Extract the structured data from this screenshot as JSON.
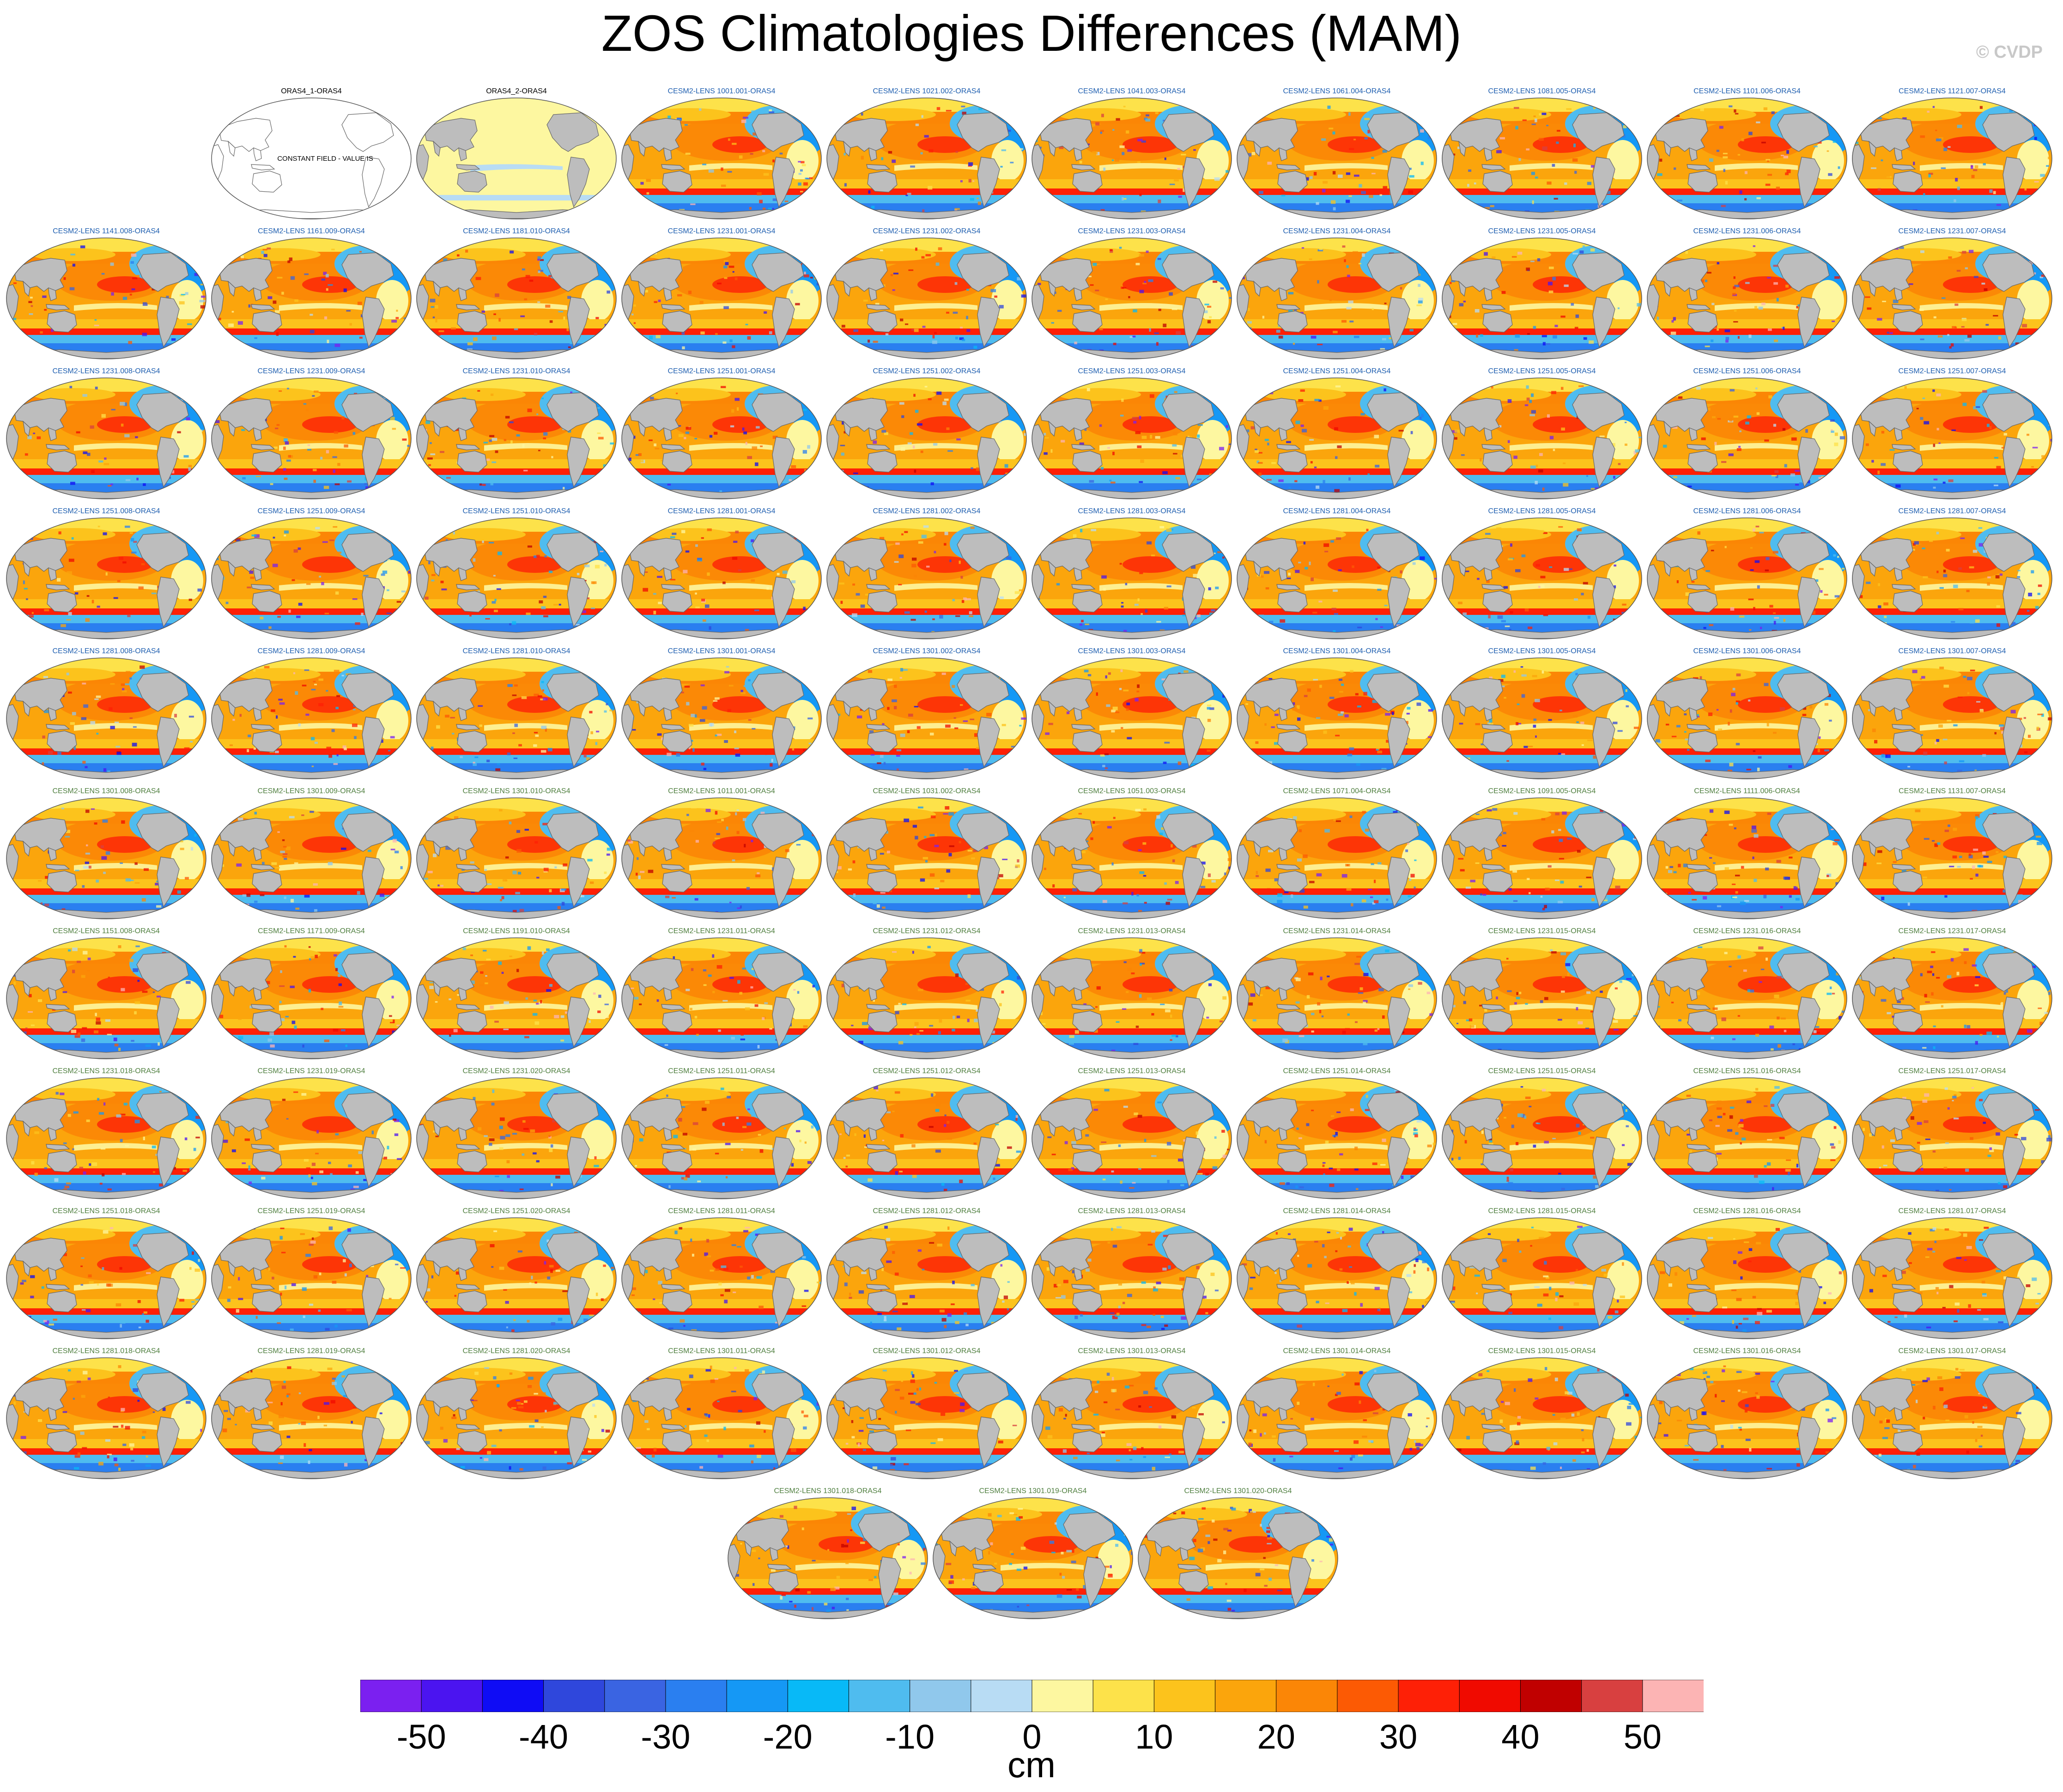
{
  "title": "ZOS Climatologies Differences (MAM)",
  "copyright": "© CVDP",
  "colors": {
    "land": "#bdbdbd",
    "coast": "#666666",
    "label_blue": "#1f5fb0",
    "label_green": "#4f7f3f",
    "label_black": "#000000"
  },
  "colorbar": {
    "unit": "cm",
    "colors": [
      "#7b20f0",
      "#4b14f0",
      "#0f0cf5",
      "#2f47dc",
      "#3a64e2",
      "#2a7ff0",
      "#1598f5",
      "#08b9f7",
      "#4fbcef",
      "#90c8ec",
      "#b8dcf4",
      "#fdf7a0",
      "#fde24a",
      "#fcc31c",
      "#fba50c",
      "#fb8606",
      "#fc5a04",
      "#fe2006",
      "#f00a00",
      "#c00000",
      "#d84040",
      "#fcb4b4"
    ],
    "ticks": [
      -50,
      -40,
      -30,
      -20,
      -10,
      0,
      10,
      20,
      30,
      40,
      50
    ],
    "tick_labels": [
      "-50",
      "-40",
      "-30",
      "-20",
      "-10",
      "0",
      "10",
      "20",
      "30",
      "40",
      "50"
    ],
    "range": [
      -55,
      55
    ]
  },
  "panels": [
    {
      "label": "ORAS4_1-ORAS4",
      "style": "blank",
      "note": "CONSTANT FIELD - VALUE IS"
    },
    {
      "label": "ORAS4_2-ORAS4",
      "style": "pale"
    },
    {
      "label": "CESM2-LENS 1001.001-ORAS4",
      "style": "diff"
    },
    {
      "label": "CESM2-LENS 1021.002-ORAS4",
      "style": "diff"
    },
    {
      "label": "CESM2-LENS 1041.003-ORAS4",
      "style": "diff"
    },
    {
      "label": "CESM2-LENS 1061.004-ORAS4",
      "style": "diff"
    },
    {
      "label": "CESM2-LENS 1081.005-ORAS4",
      "style": "diff"
    },
    {
      "label": "CESM2-LENS 1101.006-ORAS4",
      "style": "diff"
    },
    {
      "label": "CESM2-LENS 1121.007-ORAS4",
      "style": "diff"
    },
    {
      "label": "CESM2-LENS 1141.008-ORAS4",
      "style": "diff"
    },
    {
      "label": "CESM2-LENS 1161.009-ORAS4",
      "style": "diff"
    },
    {
      "label": "CESM2-LENS 1181.010-ORAS4",
      "style": "diff"
    },
    {
      "label": "CESM2-LENS 1231.001-ORAS4",
      "style": "diff"
    },
    {
      "label": "CESM2-LENS 1231.002-ORAS4",
      "style": "diff"
    },
    {
      "label": "CESM2-LENS 1231.003-ORAS4",
      "style": "diff"
    },
    {
      "label": "CESM2-LENS 1231.004-ORAS4",
      "style": "diff"
    },
    {
      "label": "CESM2-LENS 1231.005-ORAS4",
      "style": "diff"
    },
    {
      "label": "CESM2-LENS 1231.006-ORAS4",
      "style": "diff"
    },
    {
      "label": "CESM2-LENS 1231.007-ORAS4",
      "style": "diff"
    },
    {
      "label": "CESM2-LENS 1231.008-ORAS4",
      "style": "diff"
    },
    {
      "label": "CESM2-LENS 1231.009-ORAS4",
      "style": "diff"
    },
    {
      "label": "CESM2-LENS 1231.010-ORAS4",
      "style": "diff"
    },
    {
      "label": "CESM2-LENS 1251.001-ORAS4",
      "style": "diff"
    },
    {
      "label": "CESM2-LENS 1251.002-ORAS4",
      "style": "diff"
    },
    {
      "label": "CESM2-LENS 1251.003-ORAS4",
      "style": "diff"
    },
    {
      "label": "CESM2-LENS 1251.004-ORAS4",
      "style": "diff"
    },
    {
      "label": "CESM2-LENS 1251.005-ORAS4",
      "style": "diff"
    },
    {
      "label": "CESM2-LENS 1251.006-ORAS4",
      "style": "diff"
    },
    {
      "label": "CESM2-LENS 1251.007-ORAS4",
      "style": "diff"
    },
    {
      "label": "CESM2-LENS 1251.008-ORAS4",
      "style": "diff"
    },
    {
      "label": "CESM2-LENS 1251.009-ORAS4",
      "style": "diff"
    },
    {
      "label": "CESM2-LENS 1251.010-ORAS4",
      "style": "diff"
    },
    {
      "label": "CESM2-LENS 1281.001-ORAS4",
      "style": "diff"
    },
    {
      "label": "CESM2-LENS 1281.002-ORAS4",
      "style": "diff"
    },
    {
      "label": "CESM2-LENS 1281.003-ORAS4",
      "style": "diff"
    },
    {
      "label": "CESM2-LENS 1281.004-ORAS4",
      "style": "diff"
    },
    {
      "label": "CESM2-LENS 1281.005-ORAS4",
      "style": "diff"
    },
    {
      "label": "CESM2-LENS 1281.006-ORAS4",
      "style": "diff"
    },
    {
      "label": "CESM2-LENS 1281.007-ORAS4",
      "style": "diff"
    },
    {
      "label": "CESM2-LENS 1281.008-ORAS4",
      "style": "diff"
    },
    {
      "label": "CESM2-LENS 1281.009-ORAS4",
      "style": "diff"
    },
    {
      "label": "CESM2-LENS 1281.010-ORAS4",
      "style": "diff"
    },
    {
      "label": "CESM2-LENS 1301.001-ORAS4",
      "style": "diff"
    },
    {
      "label": "CESM2-LENS 1301.002-ORAS4",
      "style": "diff"
    },
    {
      "label": "CESM2-LENS 1301.003-ORAS4",
      "style": "diff"
    },
    {
      "label": "CESM2-LENS 1301.004-ORAS4",
      "style": "diff"
    },
    {
      "label": "CESM2-LENS 1301.005-ORAS4",
      "style": "diff"
    },
    {
      "label": "CESM2-LENS 1301.006-ORAS4",
      "style": "diff"
    },
    {
      "label": "CESM2-LENS 1301.007-ORAS4",
      "style": "diff"
    },
    {
      "label": "CESM2-LENS 1301.008-ORAS4",
      "style": "diff"
    },
    {
      "label": "CESM2-LENS 1301.009-ORAS4",
      "style": "diff"
    },
    {
      "label": "CESM2-LENS 1301.010-ORAS4",
      "style": "diff"
    },
    {
      "label": "CESM2-LENS 1011.001-ORAS4",
      "style": "diff"
    },
    {
      "label": "CESM2-LENS 1031.002-ORAS4",
      "style": "diff"
    },
    {
      "label": "CESM2-LENS 1051.003-ORAS4",
      "style": "diff"
    },
    {
      "label": "CESM2-LENS 1071.004-ORAS4",
      "style": "diff"
    },
    {
      "label": "CESM2-LENS 1091.005-ORAS4",
      "style": "diff"
    },
    {
      "label": "CESM2-LENS 1111.006-ORAS4",
      "style": "diff"
    },
    {
      "label": "CESM2-LENS 1131.007-ORAS4",
      "style": "diff"
    },
    {
      "label": "CESM2-LENS 1151.008-ORAS4",
      "style": "diff"
    },
    {
      "label": "CESM2-LENS 1171.009-ORAS4",
      "style": "diff"
    },
    {
      "label": "CESM2-LENS 1191.010-ORAS4",
      "style": "diff"
    },
    {
      "label": "CESM2-LENS 1231.011-ORAS4",
      "style": "diff"
    },
    {
      "label": "CESM2-LENS 1231.012-ORAS4",
      "style": "diff"
    },
    {
      "label": "CESM2-LENS 1231.013-ORAS4",
      "style": "diff"
    },
    {
      "label": "CESM2-LENS 1231.014-ORAS4",
      "style": "diff"
    },
    {
      "label": "CESM2-LENS 1231.015-ORAS4",
      "style": "diff"
    },
    {
      "label": "CESM2-LENS 1231.016-ORAS4",
      "style": "diff"
    },
    {
      "label": "CESM2-LENS 1231.017-ORAS4",
      "style": "diff"
    },
    {
      "label": "CESM2-LENS 1231.018-ORAS4",
      "style": "diff"
    },
    {
      "label": "CESM2-LENS 1231.019-ORAS4",
      "style": "diff"
    },
    {
      "label": "CESM2-LENS 1231.020-ORAS4",
      "style": "diff"
    },
    {
      "label": "CESM2-LENS 1251.011-ORAS4",
      "style": "diff"
    },
    {
      "label": "CESM2-LENS 1251.012-ORAS4",
      "style": "diff"
    },
    {
      "label": "CESM2-LENS 1251.013-ORAS4",
      "style": "diff"
    },
    {
      "label": "CESM2-LENS 1251.014-ORAS4",
      "style": "diff"
    },
    {
      "label": "CESM2-LENS 1251.015-ORAS4",
      "style": "diff"
    },
    {
      "label": "CESM2-LENS 1251.016-ORAS4",
      "style": "diff"
    },
    {
      "label": "CESM2-LENS 1251.017-ORAS4",
      "style": "diff"
    },
    {
      "label": "CESM2-LENS 1251.018-ORAS4",
      "style": "diff"
    },
    {
      "label": "CESM2-LENS 1251.019-ORAS4",
      "style": "diff"
    },
    {
      "label": "CESM2-LENS 1251.020-ORAS4",
      "style": "diff"
    },
    {
      "label": "CESM2-LENS 1281.011-ORAS4",
      "style": "diff"
    },
    {
      "label": "CESM2-LENS 1281.012-ORAS4",
      "style": "diff"
    },
    {
      "label": "CESM2-LENS 1281.013-ORAS4",
      "style": "diff"
    },
    {
      "label": "CESM2-LENS 1281.014-ORAS4",
      "style": "diff"
    },
    {
      "label": "CESM2-LENS 1281.015-ORAS4",
      "style": "diff"
    },
    {
      "label": "CESM2-LENS 1281.016-ORAS4",
      "style": "diff"
    },
    {
      "label": "CESM2-LENS 1281.017-ORAS4",
      "style": "diff"
    },
    {
      "label": "CESM2-LENS 1281.018-ORAS4",
      "style": "diff"
    },
    {
      "label": "CESM2-LENS 1281.019-ORAS4",
      "style": "diff"
    },
    {
      "label": "CESM2-LENS 1281.020-ORAS4",
      "style": "diff"
    },
    {
      "label": "CESM2-LENS 1301.011-ORAS4",
      "style": "diff"
    },
    {
      "label": "CESM2-LENS 1301.012-ORAS4",
      "style": "diff"
    },
    {
      "label": "CESM2-LENS 1301.013-ORAS4",
      "style": "diff"
    },
    {
      "label": "CESM2-LENS 1301.014-ORAS4",
      "style": "diff"
    },
    {
      "label": "CESM2-LENS 1301.015-ORAS4",
      "style": "diff"
    },
    {
      "label": "CESM2-LENS 1301.016-ORAS4",
      "style": "diff"
    },
    {
      "label": "CESM2-LENS 1301.017-ORAS4",
      "style": "diff"
    },
    {
      "label": "CESM2-LENS 1301.018-ORAS4",
      "style": "diff"
    },
    {
      "label": "CESM2-LENS 1301.019-ORAS4",
      "style": "diff"
    },
    {
      "label": "CESM2-LENS 1301.020-ORAS4",
      "style": "diff"
    }
  ]
}
